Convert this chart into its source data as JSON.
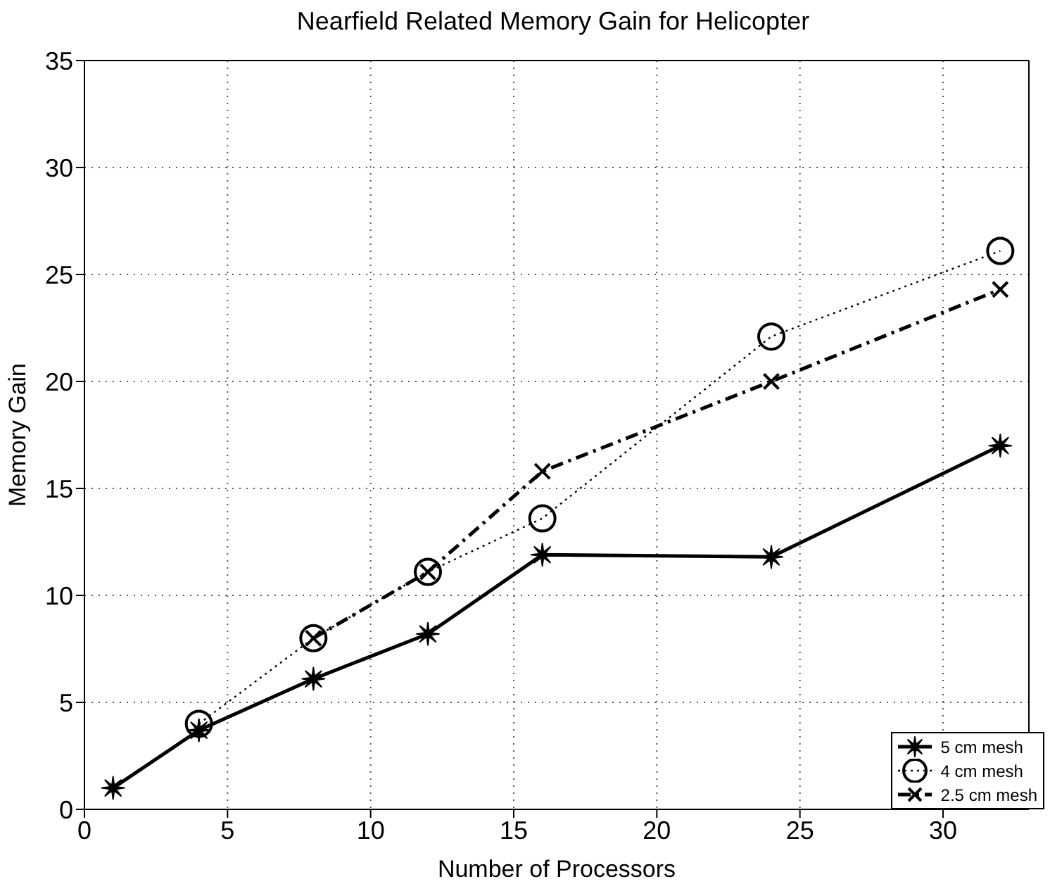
{
  "chart_data": {
    "type": "line",
    "title": "Nearfield Related Memory Gain for Helicopter",
    "xlabel": "Number of Processors",
    "ylabel": "Memory Gain",
    "xlim": [
      0,
      33
    ],
    "xticks": [
      0,
      5,
      10,
      15,
      20,
      25,
      30
    ],
    "ylim": [
      0,
      35
    ],
    "yticks": [
      0,
      5,
      10,
      15,
      20,
      25,
      30,
      35
    ],
    "grid": true,
    "legend": "bottom right",
    "series": [
      {
        "name": "5 cm mesh",
        "color": "#000000",
        "marker": "star",
        "line_style": "solid",
        "x": [
          1,
          4,
          8,
          12,
          16,
          24,
          32
        ],
        "values": [
          1,
          3.7,
          6.1,
          8.2,
          11.9,
          11.8,
          17
        ]
      },
      {
        "name": "4 cm mesh",
        "color": "#000000",
        "marker": "circle",
        "line_style": "dotted",
        "x": [
          4,
          8,
          12,
          16,
          24,
          32
        ],
        "values": [
          4,
          8,
          11.1,
          13.6,
          22.1,
          26.1
        ]
      },
      {
        "name": "2.5 cm mesh",
        "color": "#000000",
        "marker": "cross",
        "line_style": "dashed",
        "x": [
          8,
          12,
          16,
          24,
          32
        ],
        "values": [
          8,
          11.1,
          15.8,
          20,
          24.3
        ]
      }
    ]
  }
}
